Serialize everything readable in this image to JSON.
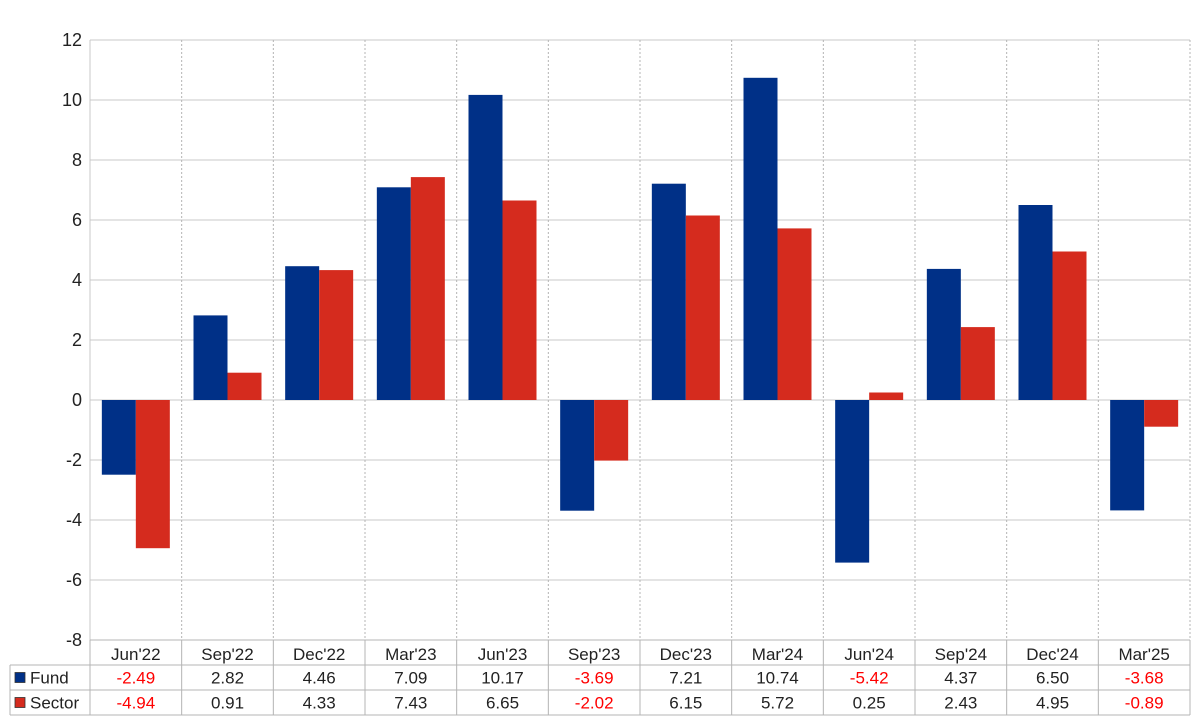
{
  "chart_data": {
    "type": "bar",
    "categories": [
      "Jun'22",
      "Sep'22",
      "Dec'22",
      "Mar'23",
      "Jun'23",
      "Sep'23",
      "Dec'23",
      "Mar'24",
      "Jun'24",
      "Sep'24",
      "Dec'24",
      "Mar'25"
    ],
    "series": [
      {
        "name": "Fund",
        "color": "#003087",
        "values": [
          -2.49,
          2.82,
          4.46,
          7.09,
          10.17,
          -3.69,
          7.21,
          10.74,
          -5.42,
          4.37,
          6.5,
          -3.68
        ],
        "labels": [
          "-2.49",
          "2.82",
          "4.46",
          "7.09",
          "10.17",
          "-3.69",
          "7.21",
          "10.74",
          "-5.42",
          "4.37",
          "6.50",
          "-3.68"
        ]
      },
      {
        "name": "Sector",
        "color": "#d52b1e",
        "values": [
          -4.94,
          0.91,
          4.33,
          7.43,
          6.65,
          -2.02,
          6.15,
          5.72,
          0.25,
          2.43,
          4.95,
          -0.89
        ],
        "labels": [
          "-4.94",
          "0.91",
          "4.33",
          "7.43",
          "6.65",
          "-2.02",
          "6.15",
          "5.72",
          "0.25",
          "2.43",
          "4.95",
          "-0.89"
        ]
      }
    ],
    "ylim": [
      -8,
      12
    ],
    "yticks": [
      "-8",
      "-6",
      "-4",
      "-2",
      "0",
      "2",
      "4",
      "6",
      "8",
      "10",
      "12"
    ],
    "title": "",
    "xlabel": "",
    "ylabel": "",
    "grid": true,
    "legend": "data-table-left",
    "negative_label_color": "#ff0000",
    "positive_label_color": "#222222"
  }
}
